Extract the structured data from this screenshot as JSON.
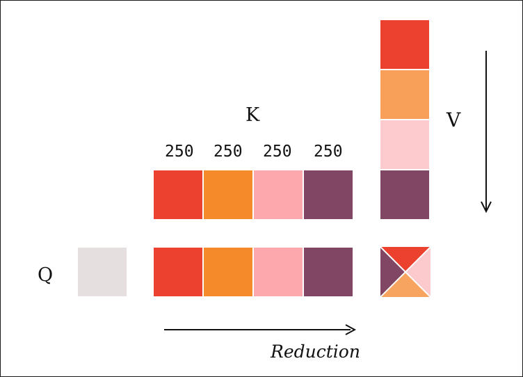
{
  "labels": {
    "q": "Q",
    "k": "K",
    "v": "V",
    "reduction": "Reduction"
  },
  "block_sizes": [
    "250",
    "250",
    "250",
    "250"
  ],
  "colors": {
    "q_block": "#e6dfdf",
    "red": "#ec412e",
    "orange": "#f58a2b",
    "pink": "#fca8ad",
    "plum": "#814663",
    "v_orange": "#f89f5a",
    "v_pink": "#fdcbce",
    "x_bottom": "#f8a461",
    "x_right": "#fccacd"
  }
}
